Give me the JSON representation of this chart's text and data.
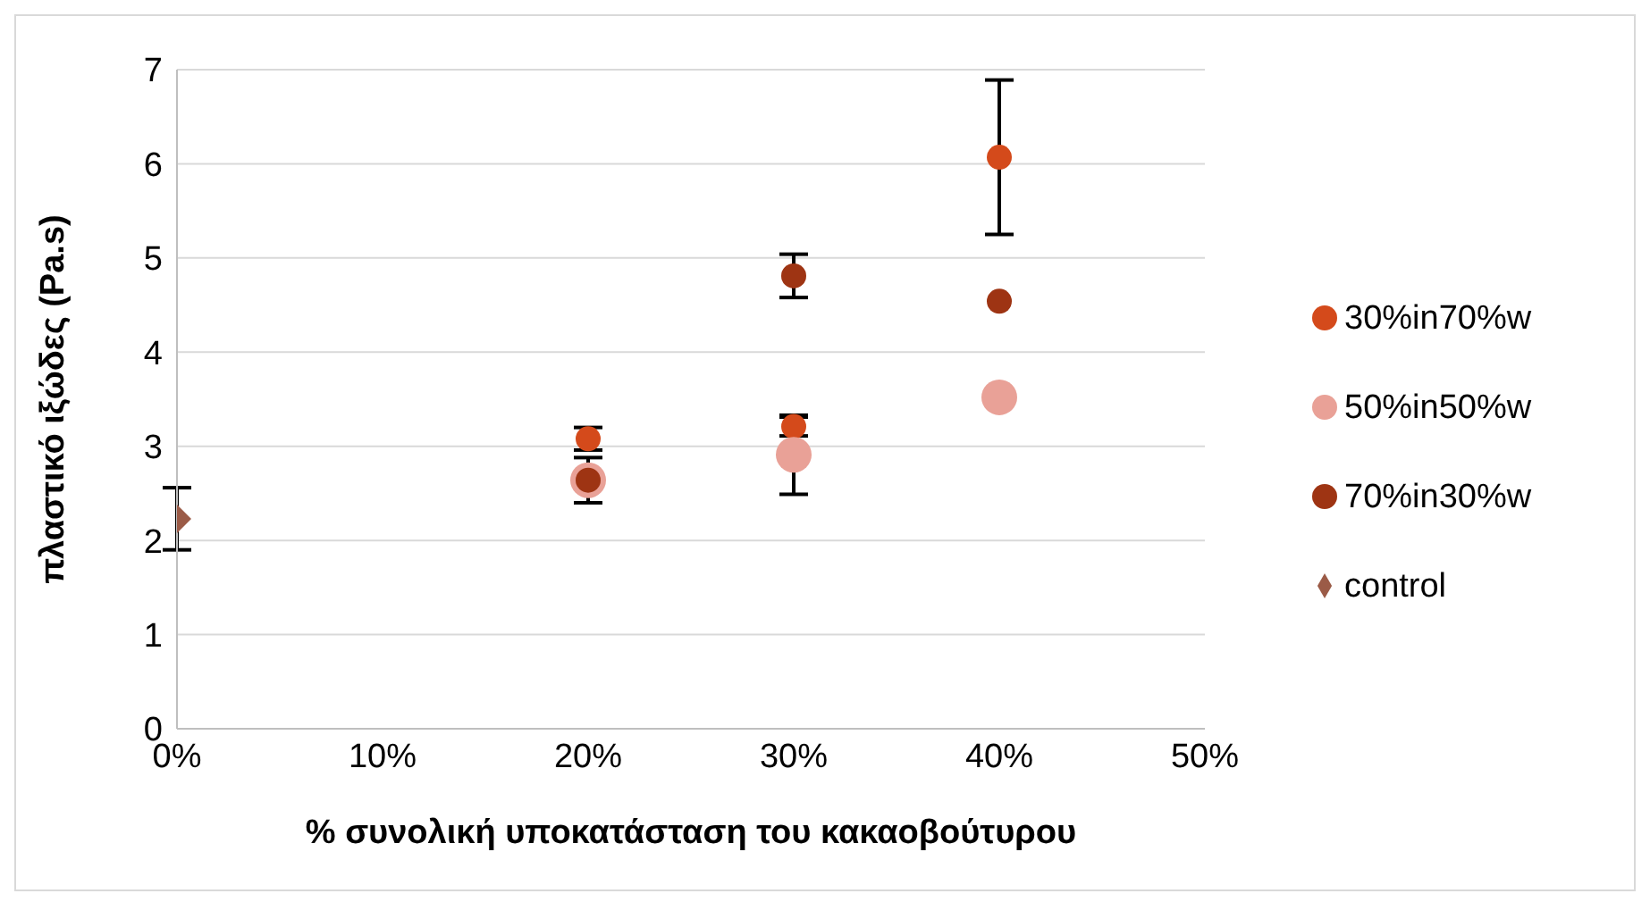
{
  "chart_data": {
    "type": "scatter",
    "xlabel": "% συνολική υποκατάσταση του κακαοβούτυρου",
    "ylabel": "πλαστικό ιξώδες (Pa.s)",
    "series": [
      {
        "name": "30%in70%w",
        "color": "#d44a1b",
        "marker": "circle",
        "x": [
          20,
          30,
          40
        ],
        "values": [
          3.08,
          3.21,
          6.07
        ],
        "errors": [
          0.12,
          0.1,
          0.82
        ]
      },
      {
        "name": "50%in50%w",
        "color": "#e9a197",
        "marker": "circle",
        "x": [
          20,
          30,
          40
        ],
        "values": [
          2.64,
          2.91,
          3.52
        ],
        "errors": [
          null,
          0.42,
          null
        ]
      },
      {
        "name": "70%in30%w",
        "color": "#9e3413",
        "marker": "circle",
        "x": [
          20,
          30,
          40
        ],
        "values": [
          2.64,
          4.81,
          4.54
        ],
        "errors": [
          0.24,
          0.23,
          null
        ]
      },
      {
        "name": "control",
        "color": "#9b5b47",
        "marker": "diamond",
        "x": [
          0
        ],
        "values": [
          2.23
        ],
        "errors": [
          0.33
        ]
      }
    ],
    "xlim": [
      0,
      50
    ],
    "xticks": [
      {
        "value": 0,
        "label": "0%"
      },
      {
        "value": 10,
        "label": "10%"
      },
      {
        "value": 20,
        "label": "20%"
      },
      {
        "value": 30,
        "label": "30%"
      },
      {
        "value": 40,
        "label": "40%"
      },
      {
        "value": 50,
        "label": "50%"
      }
    ],
    "ylim": [
      0,
      7
    ],
    "yticks": [
      0,
      1,
      2,
      3,
      4,
      5,
      6,
      7
    ],
    "grid": "y",
    "legend": "right"
  }
}
